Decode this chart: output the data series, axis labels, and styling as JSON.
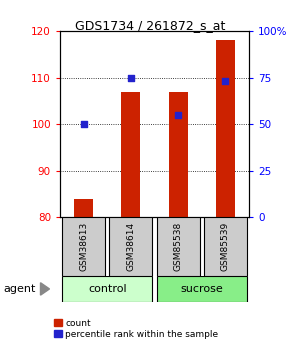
{
  "title": "GDS1734 / 261872_s_at",
  "categories": [
    "GSM38613",
    "GSM38614",
    "GSM85538",
    "GSM85539"
  ],
  "count_values": [
    84,
    107,
    107,
    118
  ],
  "percentile_values": [
    50,
    75,
    55,
    73
  ],
  "ylim_left": [
    80,
    120
  ],
  "ylim_right": [
    0,
    100
  ],
  "yticks_left": [
    80,
    90,
    100,
    110,
    120
  ],
  "yticks_right": [
    0,
    25,
    50,
    75,
    100
  ],
  "right_labels": [
    "0",
    "25",
    "50",
    "75",
    "100%"
  ],
  "bar_color": "#cc2200",
  "dot_color": "#2222cc",
  "control_color": "#ccffcc",
  "sucrose_color": "#88ee88",
  "gray_box_color": "#cccccc",
  "bar_bottom": 80,
  "legend_items": [
    {
      "label": "count",
      "color": "#cc2200"
    },
    {
      "label": "percentile rank within the sample",
      "color": "#2222cc"
    }
  ],
  "group_spans": [
    {
      "label": "control",
      "start": 0,
      "end": 1,
      "color": "#ccffcc"
    },
    {
      "label": "sucrose",
      "start": 2,
      "end": 3,
      "color": "#88ee88"
    }
  ]
}
